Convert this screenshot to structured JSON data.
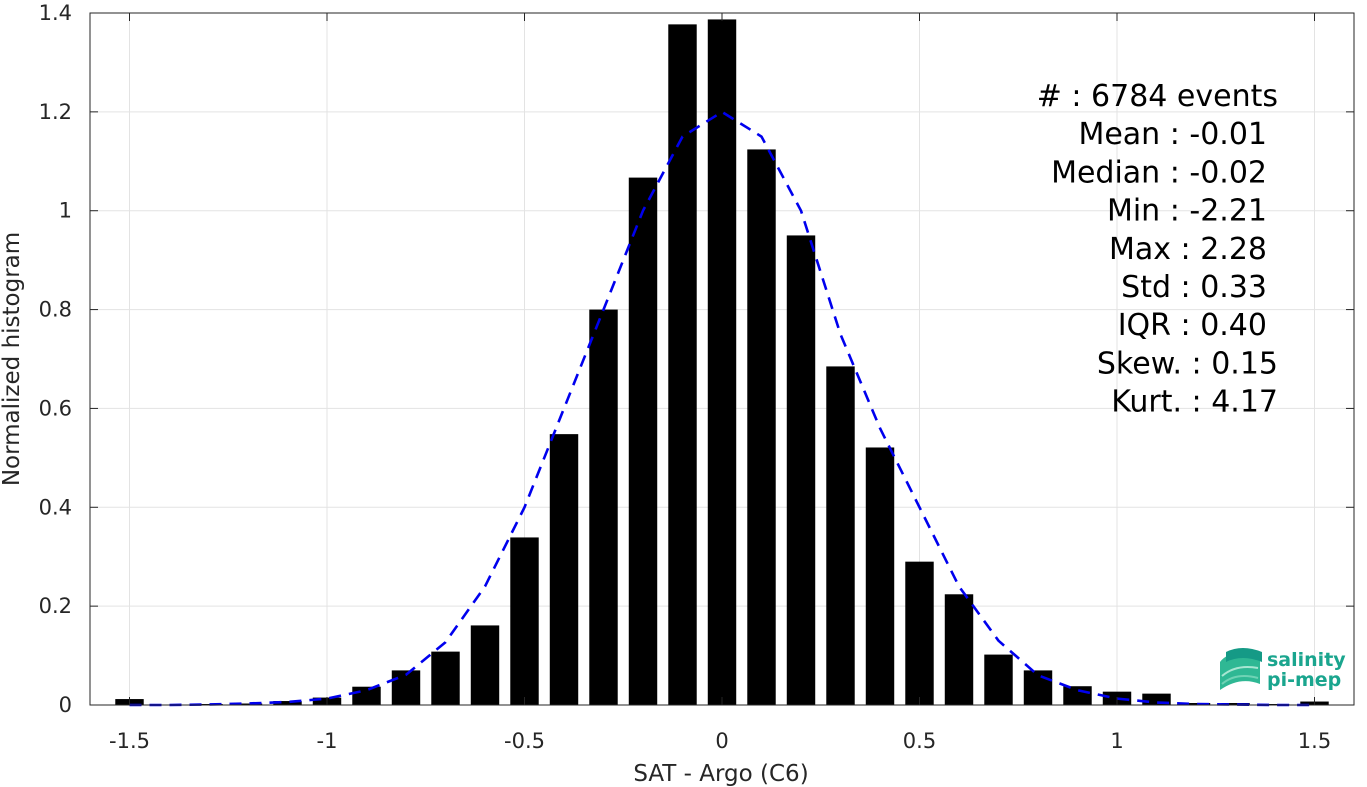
{
  "chart_data": {
    "type": "bar",
    "xlabel": "SAT - Argo (C6)",
    "ylabel": "Normalized histogram",
    "xlim": [
      -1.6,
      1.6
    ],
    "ylim": [
      0,
      1.4
    ],
    "xticks": [
      "-1.5",
      "-1",
      "-0.5",
      "0",
      "0.5",
      "1",
      "1.5"
    ],
    "yticks": [
      "0",
      "0.2",
      "0.4",
      "0.6",
      "0.8",
      "1",
      "1.2",
      "1.4"
    ],
    "grid": true,
    "bar_color": "#000000",
    "bins": [
      {
        "x": -1.5,
        "value": 0.012
      },
      {
        "x": -1.4,
        "value": 0.0
      },
      {
        "x": -1.3,
        "value": 0.002
      },
      {
        "x": -1.2,
        "value": 0.003
      },
      {
        "x": -1.1,
        "value": 0.008
      },
      {
        "x": -1.0,
        "value": 0.015
      },
      {
        "x": -0.9,
        "value": 0.037
      },
      {
        "x": -0.8,
        "value": 0.07
      },
      {
        "x": -0.7,
        "value": 0.108
      },
      {
        "x": -0.6,
        "value": 0.161
      },
      {
        "x": -0.5,
        "value": 0.339
      },
      {
        "x": -0.4,
        "value": 0.548
      },
      {
        "x": -0.3,
        "value": 0.8
      },
      {
        "x": -0.2,
        "value": 1.067
      },
      {
        "x": -0.1,
        "value": 1.377
      },
      {
        "x": 0.0,
        "value": 1.387
      },
      {
        "x": 0.1,
        "value": 1.124
      },
      {
        "x": 0.2,
        "value": 0.95
      },
      {
        "x": 0.3,
        "value": 0.685
      },
      {
        "x": 0.4,
        "value": 0.521
      },
      {
        "x": 0.5,
        "value": 0.29
      },
      {
        "x": 0.6,
        "value": 0.224
      },
      {
        "x": 0.7,
        "value": 0.102
      },
      {
        "x": 0.8,
        "value": 0.07
      },
      {
        "x": 0.9,
        "value": 0.038
      },
      {
        "x": 1.0,
        "value": 0.027
      },
      {
        "x": 1.1,
        "value": 0.023
      },
      {
        "x": 1.2,
        "value": 0.004
      },
      {
        "x": 1.3,
        "value": 0.004
      },
      {
        "x": 1.4,
        "value": 0.002
      },
      {
        "x": 1.5,
        "value": 0.007
      }
    ],
    "fit_curve": {
      "style": "dashed",
      "color": "#0000ee",
      "x": [
        -1.5,
        -1.4,
        -1.3,
        -1.2,
        -1.1,
        -1.0,
        -0.9,
        -0.8,
        -0.7,
        -0.6,
        -0.5,
        -0.4,
        -0.3,
        -0.2,
        -0.1,
        0.0,
        0.1,
        0.2,
        0.3,
        0.4,
        0.5,
        0.6,
        0.7,
        0.8,
        0.9,
        1.0,
        1.1,
        1.2,
        1.3,
        1.4,
        1.5
      ],
      "y": [
        0.0,
        0.0,
        0.001,
        0.003,
        0.006,
        0.013,
        0.03,
        0.061,
        0.127,
        0.24,
        0.4,
        0.6,
        0.8,
        1.0,
        1.15,
        1.2,
        1.15,
        1.0,
        0.75,
        0.56,
        0.4,
        0.24,
        0.13,
        0.06,
        0.03,
        0.013,
        0.005,
        0.002,
        0.001,
        0.0,
        0.0
      ]
    },
    "annotations": [
      "#  : 6784 events",
      "Mean : -0.01",
      "Median : -0.02",
      "Min : -2.21",
      "Max : 2.28",
      "Std : 0.33",
      "IQR : 0.40",
      "Skew. : 0.15",
      "Kurt. : 4.17"
    ]
  },
  "logo": {
    "line1": "salinity",
    "line2": "pi-mep",
    "color": "#1aa58e"
  }
}
